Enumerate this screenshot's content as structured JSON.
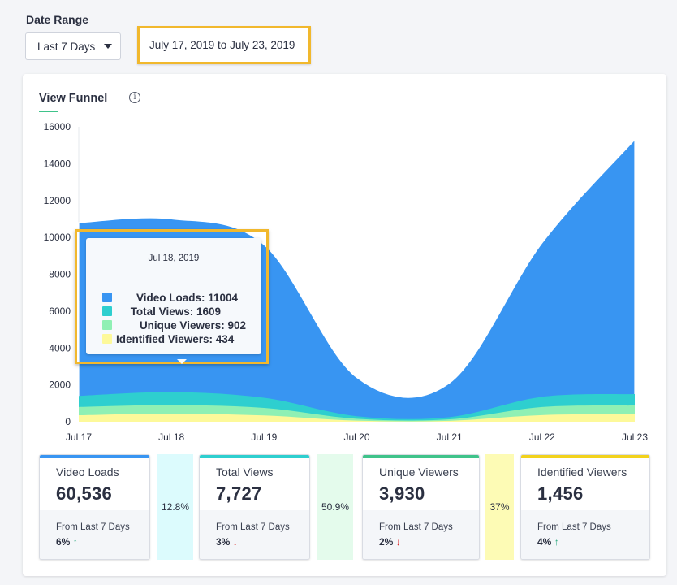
{
  "filters": {
    "date_range_label": "Date Range",
    "preset": "Last 7 Days",
    "range_display": "July 17, 2019 to July 23, 2019"
  },
  "panel": {
    "title": "View Funnel",
    "info_icon": "info-icon"
  },
  "colors": {
    "video_loads": "#3895f2",
    "total_views": "#2ecfcf",
    "unique_viewers": "#8ff0b4",
    "identified_viewers": "#fdf99a",
    "highlight": "#f1b82d"
  },
  "chart_data": {
    "type": "area",
    "x": [
      "Jul 17",
      "Jul 18",
      "Jul 19",
      "Jul 20",
      "Jul 21",
      "Jul 22",
      "Jul 23"
    ],
    "ylim": [
      0,
      16000
    ],
    "yticks": [
      0,
      2000,
      4000,
      6000,
      8000,
      10000,
      12000,
      14000,
      16000
    ],
    "series": [
      {
        "name": "Video Loads",
        "values": [
          10800,
          11004,
          9600,
          2400,
          2100,
          9700,
          15300
        ]
      },
      {
        "name": "Total Views",
        "values": [
          1400,
          1609,
          1300,
          300,
          250,
          1350,
          1500
        ]
      },
      {
        "name": "Unique Viewers",
        "values": [
          800,
          902,
          750,
          160,
          130,
          800,
          880
        ]
      },
      {
        "name": "Identified Viewers",
        "values": [
          350,
          434,
          340,
          60,
          50,
          360,
          400
        ]
      }
    ],
    "grid": false,
    "legend": "none"
  },
  "tooltip": {
    "date": "Jul 18, 2019",
    "rows": [
      {
        "label": "Video Loads: 11004"
      },
      {
        "label": "Total Views: 1609"
      },
      {
        "label": "Unique Viewers: 902"
      },
      {
        "label": "Identified Viewers: 434"
      }
    ]
  },
  "stats": [
    {
      "name": "Video Loads",
      "value": "60,536",
      "from": "From Last 7 Days",
      "change": "6%",
      "direction": "up"
    },
    {
      "name": "Total Views",
      "value": "7,727",
      "from": "From Last 7 Days",
      "change": "3%",
      "direction": "down"
    },
    {
      "name": "Unique Viewers",
      "value": "3,930",
      "from": "From Last 7 Days",
      "change": "2%",
      "direction": "down"
    },
    {
      "name": "Identified Viewers",
      "value": "1,456",
      "from": "From Last 7 Days",
      "change": "4%",
      "direction": "up"
    }
  ],
  "conversions": [
    {
      "value": "12.8%",
      "color": "#dcfbfd"
    },
    {
      "value": "50.9%",
      "color": "#e4fbec"
    },
    {
      "value": "37%",
      "color": "#fdfbb5"
    }
  ]
}
